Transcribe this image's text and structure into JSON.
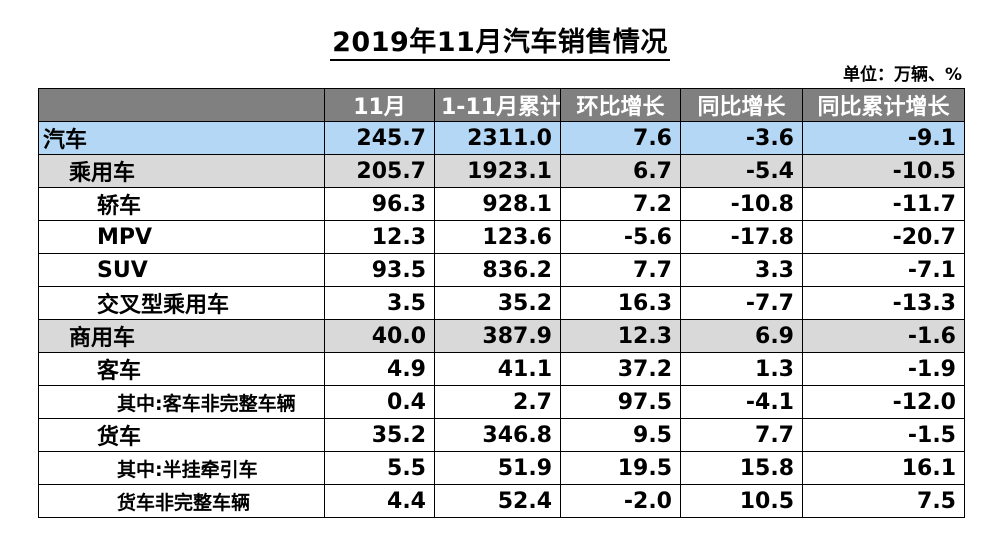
{
  "title": "2019年11月汽车销售情况",
  "unit": "单位：万辆、%",
  "table": {
    "headers": [
      "",
      "11月",
      "1-11月累计",
      "环比增长",
      "同比增长",
      "同比累计增长"
    ],
    "rows": [
      {
        "level": 0,
        "cells": [
          "汽车",
          "245.7",
          "2311.0",
          "7.6",
          "-3.6",
          "-9.1"
        ]
      },
      {
        "level": 1,
        "cells": [
          "乘用车",
          "205.7",
          "1923.1",
          "6.7",
          "-5.4",
          "-10.5"
        ]
      },
      {
        "level": 2,
        "cells": [
          "轿车",
          "96.3",
          "928.1",
          "7.2",
          "-10.8",
          "-11.7"
        ]
      },
      {
        "level": 2,
        "cells": [
          "MPV",
          "12.3",
          "123.6",
          "-5.6",
          "-17.8",
          "-20.7"
        ]
      },
      {
        "level": 2,
        "cells": [
          "SUV",
          "93.5",
          "836.2",
          "7.7",
          "3.3",
          "-7.1"
        ]
      },
      {
        "level": 2,
        "cells": [
          "交叉型乘用车",
          "3.5",
          "35.2",
          "16.3",
          "-7.7",
          "-13.3"
        ]
      },
      {
        "level": 1,
        "cells": [
          "商用车",
          "40.0",
          "387.9",
          "12.3",
          "6.9",
          "-1.6"
        ]
      },
      {
        "level": 2,
        "cells": [
          "客车",
          "4.9",
          "41.1",
          "37.2",
          "1.3",
          "-1.9"
        ]
      },
      {
        "level": 3,
        "cells": [
          "其中:客车非完整车辆",
          "0.4",
          "2.7",
          "97.5",
          "-4.1",
          "-12.0"
        ]
      },
      {
        "level": 2,
        "cells": [
          "货车",
          "35.2",
          "346.8",
          "9.5",
          "7.7",
          "-1.5"
        ]
      },
      {
        "level": 3,
        "cells": [
          "其中:半挂牵引车",
          "5.5",
          "51.9",
          "19.5",
          "15.8",
          "16.1"
        ]
      },
      {
        "level": 3,
        "cells": [
          "货车非完整车辆",
          "4.4",
          "52.4",
          "-2.0",
          "10.5",
          "7.5"
        ]
      }
    ]
  }
}
